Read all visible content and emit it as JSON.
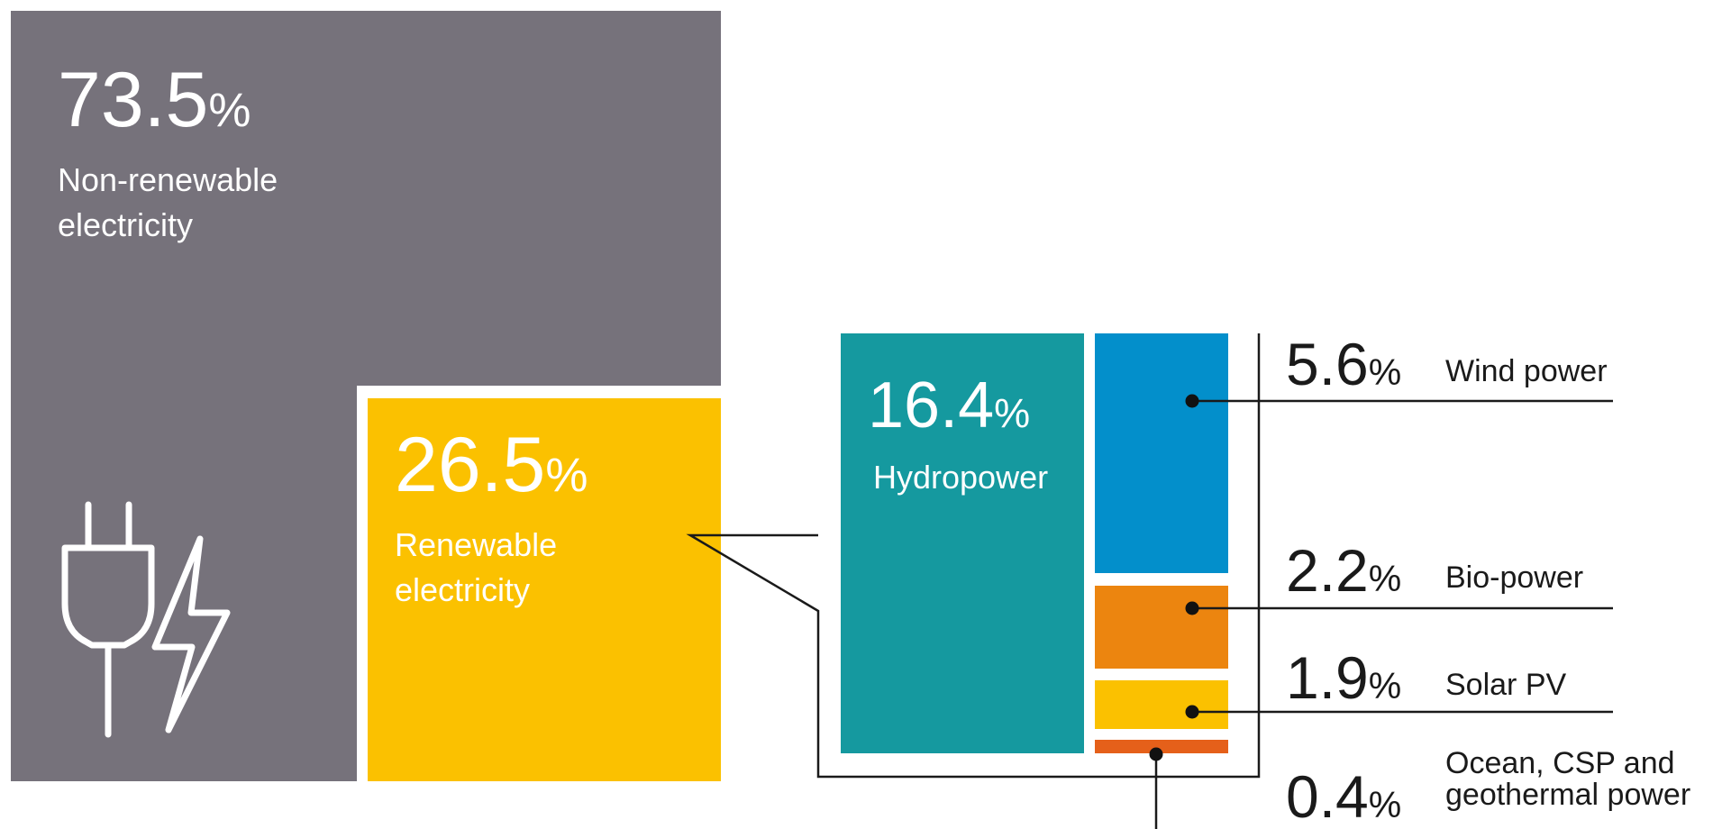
{
  "chart_data": {
    "type": "treemap",
    "categories": [
      {
        "id": "non_renewable",
        "label": "Non-renewable electricity",
        "value": 73.5,
        "color": "#76727b"
      },
      {
        "id": "renewable",
        "label": "Renewable electricity",
        "value": 26.5,
        "color": "#fbc100"
      }
    ],
    "renewable_breakdown": [
      {
        "id": "hydro",
        "label": "Hydropower",
        "value": 16.4,
        "color": "#15999f"
      },
      {
        "id": "wind",
        "label": "Wind power",
        "value": 5.6,
        "color": "#038fcb"
      },
      {
        "id": "bio",
        "label": "Bio-power",
        "value": 2.2,
        "color": "#ec850f"
      },
      {
        "id": "solar",
        "label": "Solar PV",
        "value": 1.9,
        "color": "#fbc100"
      },
      {
        "id": "ocean",
        "label": "Ocean, CSP and geothermal power",
        "label_lines": [
          "Ocean, CSP and",
          "geothermal power"
        ],
        "value": 0.4,
        "color": "#e5601a"
      }
    ],
    "value_suffix": "%",
    "icons": [
      "plug-icon",
      "lightning-bolt-icon"
    ]
  },
  "labels": {
    "non_renewable_value": "73.5",
    "non_renewable_text": [
      "Non-renewable",
      "electricity"
    ],
    "renewable_value": "26.5",
    "renewable_text": [
      "Renewable",
      "electricity"
    ],
    "hydro_value": "16.4",
    "hydro_text": "Hydropower",
    "wind_value": "5.6",
    "bio_value": "2.2",
    "solar_value": "1.9",
    "ocean_value": "0.4",
    "percent": "%"
  }
}
